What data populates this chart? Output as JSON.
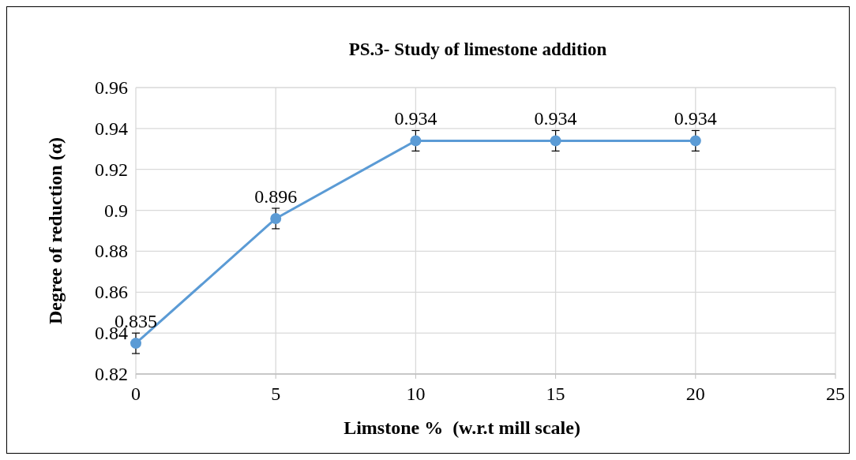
{
  "chart_data": {
    "type": "line",
    "title": "PS.3- Study of limestone addition",
    "xlabel": "Limstone %  (w.r.t mill scale)",
    "ylabel": "Degree of reduction (α)",
    "x": [
      0,
      5,
      10,
      15,
      20
    ],
    "series": [
      {
        "color": "#5b9bd5",
        "values": [
          0.835,
          0.896,
          0.934,
          0.934,
          0.934
        ],
        "errors": [
          0.005,
          0.005,
          0.005,
          0.005,
          0.005
        ]
      }
    ],
    "xlim": [
      0,
      25
    ],
    "xticks": [
      0,
      5,
      10,
      15,
      20,
      25
    ],
    "ylim": [
      0.82,
      0.96
    ],
    "yticks": [
      0.82,
      0.84,
      0.86,
      0.88,
      0.9,
      0.92,
      0.94,
      0.96
    ],
    "grid": true,
    "marker": "circle",
    "line_style": "solid",
    "data_labels": true
  }
}
